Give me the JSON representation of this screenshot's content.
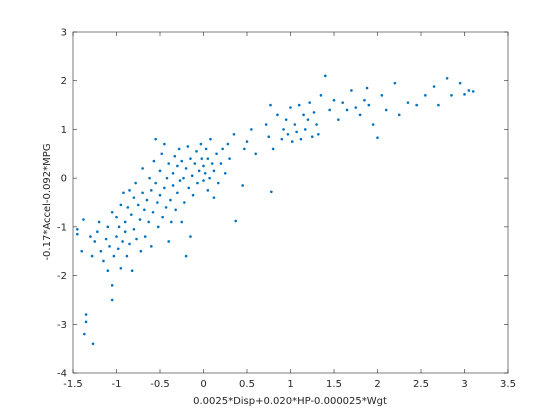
{
  "chart_data": {
    "type": "scatter",
    "xlabel": "0.0025*Disp+0.020*HP-0.000025*Wgt",
    "ylabel": "-0.17*Accel-0.092*MPG",
    "color": "#0072bd",
    "xlim": [
      -1.5,
      3.5
    ],
    "xticks": [
      -1.5,
      -1,
      -0.5,
      0,
      0.5,
      1,
      1.5,
      2,
      2.5,
      3,
      3.5
    ],
    "ylim": [
      -4,
      3
    ],
    "yticks": [
      -4,
      -3,
      -2,
      -1,
      0,
      1,
      2,
      3
    ],
    "x": [
      -1.45,
      -1.45,
      -1.4,
      -1.38,
      -1.35,
      -1.35,
      -1.37,
      -1.27,
      -1.3,
      -1.28,
      -1.25,
      -1.22,
      -1.2,
      -1.18,
      -1.15,
      -1.12,
      -1.1,
      -1.1,
      -1.08,
      -1.05,
      -1.05,
      -1.05,
      -1.03,
      -1.0,
      -1.0,
      -0.98,
      -0.97,
      -0.95,
      -0.95,
      -0.93,
      -0.92,
      -0.9,
      -0.9,
      -0.88,
      -0.87,
      -0.85,
      -0.85,
      -0.83,
      -0.82,
      -0.8,
      -0.8,
      -0.78,
      -0.77,
      -0.75,
      -0.73,
      -0.72,
      -0.7,
      -0.7,
      -0.68,
      -0.67,
      -0.65,
      -0.63,
      -0.62,
      -0.6,
      -0.6,
      -0.58,
      -0.57,
      -0.55,
      -0.55,
      -0.53,
      -0.52,
      -0.5,
      -0.5,
      -0.48,
      -0.47,
      -0.45,
      -0.45,
      -0.43,
      -0.42,
      -0.4,
      -0.4,
      -0.38,
      -0.37,
      -0.35,
      -0.35,
      -0.33,
      -0.32,
      -0.3,
      -0.3,
      -0.28,
      -0.27,
      -0.25,
      -0.25,
      -0.23,
      -0.22,
      -0.2,
      -0.2,
      -0.18,
      -0.17,
      -0.15,
      -0.15,
      -0.13,
      -0.12,
      -0.1,
      -0.08,
      -0.07,
      -0.05,
      -0.03,
      -0.02,
      0.0,
      0.0,
      0.02,
      0.03,
      0.05,
      0.05,
      0.07,
      0.08,
      0.1,
      0.12,
      0.12,
      0.15,
      0.17,
      0.2,
      0.22,
      0.25,
      0.28,
      0.3,
      0.35,
      0.37,
      0.45,
      0.47,
      0.5,
      0.55,
      0.6,
      0.72,
      0.75,
      0.77,
      0.78,
      0.8,
      0.85,
      0.9,
      0.92,
      0.95,
      0.97,
      1.0,
      1.02,
      1.05,
      1.07,
      1.1,
      1.12,
      1.15,
      1.17,
      1.2,
      1.22,
      1.25,
      1.27,
      1.3,
      1.32,
      1.35,
      1.4,
      1.45,
      1.5,
      1.55,
      1.6,
      1.65,
      1.7,
      1.75,
      1.8,
      1.85,
      1.88,
      1.9,
      1.95,
      2.0,
      2.05,
      2.1,
      2.2,
      2.25,
      2.35,
      2.45,
      2.55,
      2.65,
      2.7,
      2.8,
      2.85,
      2.95,
      3.0,
      3.05,
      3.1
    ],
    "y": [
      -1.15,
      -1.05,
      -1.5,
      -0.85,
      -2.8,
      -2.95,
      -3.2,
      -3.4,
      -1.2,
      -1.6,
      -1.3,
      -1.1,
      -0.9,
      -1.5,
      -1.7,
      -1.25,
      -1.9,
      -1.0,
      -1.4,
      -2.2,
      -2.5,
      -0.7,
      -1.6,
      -1.2,
      -0.8,
      -1.45,
      -1.0,
      -1.85,
      -0.55,
      -1.3,
      -0.3,
      -1.1,
      -0.9,
      -1.6,
      -0.6,
      -1.35,
      -0.25,
      -0.75,
      -1.9,
      -0.4,
      -1.05,
      -0.1,
      -1.25,
      -0.55,
      -0.85,
      -1.5,
      -0.3,
      0.2,
      -0.65,
      -1.2,
      -0.45,
      -0.9,
      0.0,
      -0.25,
      -1.4,
      -0.7,
      0.35,
      0.8,
      -0.1,
      -0.5,
      -1.0,
      0.15,
      -0.35,
      0.5,
      -0.8,
      -0.2,
      0.7,
      -0.6,
      0.0,
      -1.3,
      0.3,
      -0.45,
      -0.9,
      0.1,
      -0.15,
      0.45,
      -0.65,
      0.25,
      -0.3,
      0.6,
      -0.05,
      -0.9,
      0.35,
      0.0,
      -0.5,
      -1.6,
      0.2,
      0.65,
      -0.2,
      -1.2,
      0.4,
      0.05,
      -0.35,
      0.3,
      0.55,
      -0.1,
      0.15,
      0.7,
      0.4,
      -0.05,
      0.25,
      0.1,
      0.6,
      -0.25,
      0.4,
      0.0,
      0.8,
      0.3,
      -0.4,
      0.15,
      0.5,
      -0.1,
      0.3,
      0.6,
      0.1,
      0.7,
      0.4,
      0.9,
      -0.88,
      -0.15,
      0.6,
      0.75,
      1.0,
      0.5,
      1.1,
      0.85,
      1.5,
      -0.28,
      0.6,
      1.3,
      0.8,
      1.0,
      1.2,
      0.9,
      1.45,
      0.75,
      1.1,
      0.95,
      1.5,
      0.8,
      1.3,
      1.0,
      1.2,
      1.55,
      0.85,
      1.35,
      1.1,
      0.9,
      1.7,
      2.1,
      1.4,
      1.6,
      1.2,
      1.55,
      1.4,
      1.8,
      1.45,
      1.3,
      1.6,
      1.85,
      1.5,
      1.1,
      0.83,
      1.7,
      1.4,
      1.95,
      1.3,
      1.55,
      1.5,
      1.7,
      1.88,
      1.5,
      2.05,
      1.7,
      1.95,
      1.72,
      1.8,
      1.78
    ]
  }
}
